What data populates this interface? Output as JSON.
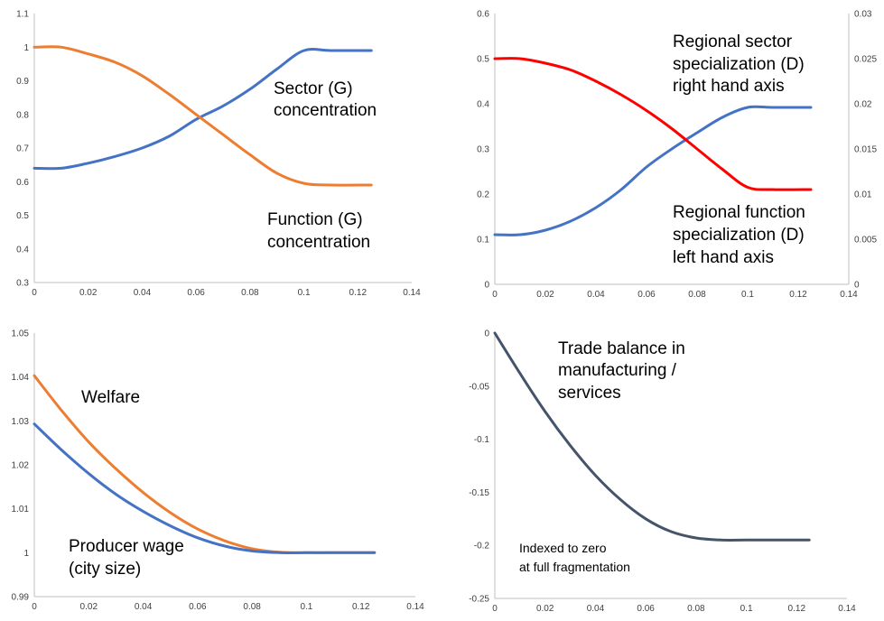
{
  "chart_data": [
    {
      "type": "line",
      "x": [
        0,
        0.01,
        0.02,
        0.03,
        0.04,
        0.05,
        0.06,
        0.07,
        0.08,
        0.09,
        0.1,
        0.11,
        0.125
      ],
      "series": [
        {
          "name": "Sector (G) concentration",
          "color": "#4472c4",
          "values": [
            0.64,
            0.64,
            0.655,
            0.675,
            0.7,
            0.735,
            0.785,
            0.825,
            0.875,
            0.935,
            0.99,
            0.99,
            0.99
          ]
        },
        {
          "name": "Function (G) concentration",
          "color": "#ed7d31",
          "values": [
            1.0,
            1.0,
            0.98,
            0.955,
            0.915,
            0.86,
            0.8,
            0.74,
            0.68,
            0.625,
            0.595,
            0.59,
            0.59
          ]
        }
      ],
      "xlim": [
        0,
        0.14
      ],
      "ylim": [
        0.3,
        1.1
      ],
      "x_ticks": [
        "0",
        "0.02",
        "0.04",
        "0.06",
        "0.08",
        "0.1",
        "0.12",
        "0.14"
      ],
      "y_ticks": [
        "0.3",
        "0.4",
        "0.5",
        "0.6",
        "0.7",
        "0.8",
        "0.9",
        "1",
        "1.1"
      ],
      "annotations": [
        {
          "line1": "Sector (G)",
          "line2": "concentration"
        },
        {
          "line1": "Function (G)",
          "line2": "concentration"
        }
      ],
      "grid": false
    },
    {
      "type": "line",
      "x": [
        0,
        0.01,
        0.02,
        0.03,
        0.04,
        0.05,
        0.06,
        0.07,
        0.08,
        0.09,
        0.1,
        0.11,
        0.125
      ],
      "series": [
        {
          "name": "Regional sector specialization (D) right hand axis",
          "color": "#4472c4",
          "axis": "right",
          "values": [
            0.0055,
            0.0055,
            0.006,
            0.007,
            0.0085,
            0.0105,
            0.013,
            0.015,
            0.0168,
            0.0185,
            0.0196,
            0.0196,
            0.0196
          ]
        },
        {
          "name": "Regional function specialization (D) left hand axis",
          "color": "#ff0000",
          "axis": "left",
          "values": [
            0.5,
            0.5,
            0.49,
            0.475,
            0.45,
            0.42,
            0.385,
            0.345,
            0.3,
            0.255,
            0.215,
            0.21,
            0.21
          ]
        }
      ],
      "xlim": [
        0,
        0.14
      ],
      "ylim": [
        0,
        0.6
      ],
      "y2lim": [
        0,
        0.03
      ],
      "x_ticks": [
        "0",
        "0.02",
        "0.04",
        "0.06",
        "0.08",
        "0.1",
        "0.12",
        "0.14"
      ],
      "y_ticks": [
        "0",
        "0.1",
        "0.2",
        "0.3",
        "0.4",
        "0.5",
        "0.6"
      ],
      "y2_ticks": [
        "0",
        "0.005",
        "0.01",
        "0.015",
        "0.02",
        "0.025",
        "0.03"
      ],
      "annotations": [
        {
          "line1": "Regional sector",
          "line2": "specialization (D)",
          "line3": "right hand axis"
        },
        {
          "line1": "Regional function",
          "line2": "specialization (D)",
          "line3": "left hand axis"
        }
      ],
      "grid": false
    },
    {
      "type": "line",
      "x": [
        0,
        0.01,
        0.02,
        0.03,
        0.04,
        0.05,
        0.06,
        0.07,
        0.08,
        0.09,
        0.1,
        0.11,
        0.125
      ],
      "series": [
        {
          "name": "Welfare",
          "color": "#ed7d31",
          "values": [
            1.0403,
            1.0324,
            1.0252,
            1.0191,
            1.0137,
            1.0091,
            1.0054,
            1.0027,
            1.0009,
            1.0001,
            1.0,
            1.0,
            1.0
          ]
        },
        {
          "name": "Producer wage (city size)",
          "color": "#4472c4",
          "values": [
            1.0293,
            1.0234,
            1.018,
            1.0133,
            1.0094,
            1.0061,
            1.0034,
            1.0015,
            1.0004,
            1.0,
            1.0,
            1.0,
            1.0
          ]
        }
      ],
      "xlim": [
        0,
        0.14
      ],
      "ylim": [
        0.99,
        1.05
      ],
      "x_ticks": [
        "0",
        "0.02",
        "0.04",
        "0.06",
        "0.08",
        "0.1",
        "0.12",
        "0.14"
      ],
      "y_ticks": [
        "0.99",
        "1",
        "1.01",
        "1.02",
        "1.03",
        "1.04",
        "1.05"
      ],
      "annotations": [
        {
          "line1": "Welfare"
        },
        {
          "line1": "Producer wage",
          "line2": "(city size)"
        }
      ],
      "grid": false
    },
    {
      "type": "line",
      "x": [
        0,
        0.01,
        0.02,
        0.03,
        0.04,
        0.05,
        0.06,
        0.07,
        0.08,
        0.09,
        0.1,
        0.11,
        0.125
      ],
      "series": [
        {
          "name": "Trade balance in manufacturing / services",
          "color": "#44546a",
          "values": [
            0,
            -0.038,
            -0.074,
            -0.106,
            -0.134,
            -0.157,
            -0.175,
            -0.187,
            -0.193,
            -0.195,
            -0.195,
            -0.195,
            -0.195
          ]
        }
      ],
      "xlim": [
        0,
        0.14
      ],
      "ylim": [
        -0.25,
        0
      ],
      "x_ticks": [
        "0",
        "0.02",
        "0.04",
        "0.06",
        "0.08",
        "0.1",
        "0.12",
        "0.14"
      ],
      "y_ticks": [
        "-0.25",
        "-0.2",
        "-0.15",
        "-0.1",
        "-0.05",
        "0"
      ],
      "annotations": [
        {
          "line1": "Trade balance in",
          "line2": "manufacturing /",
          "line3": "services"
        },
        {
          "line1": "Indexed to zero",
          "line2": "at  full fragmentation"
        }
      ],
      "grid": false
    }
  ]
}
